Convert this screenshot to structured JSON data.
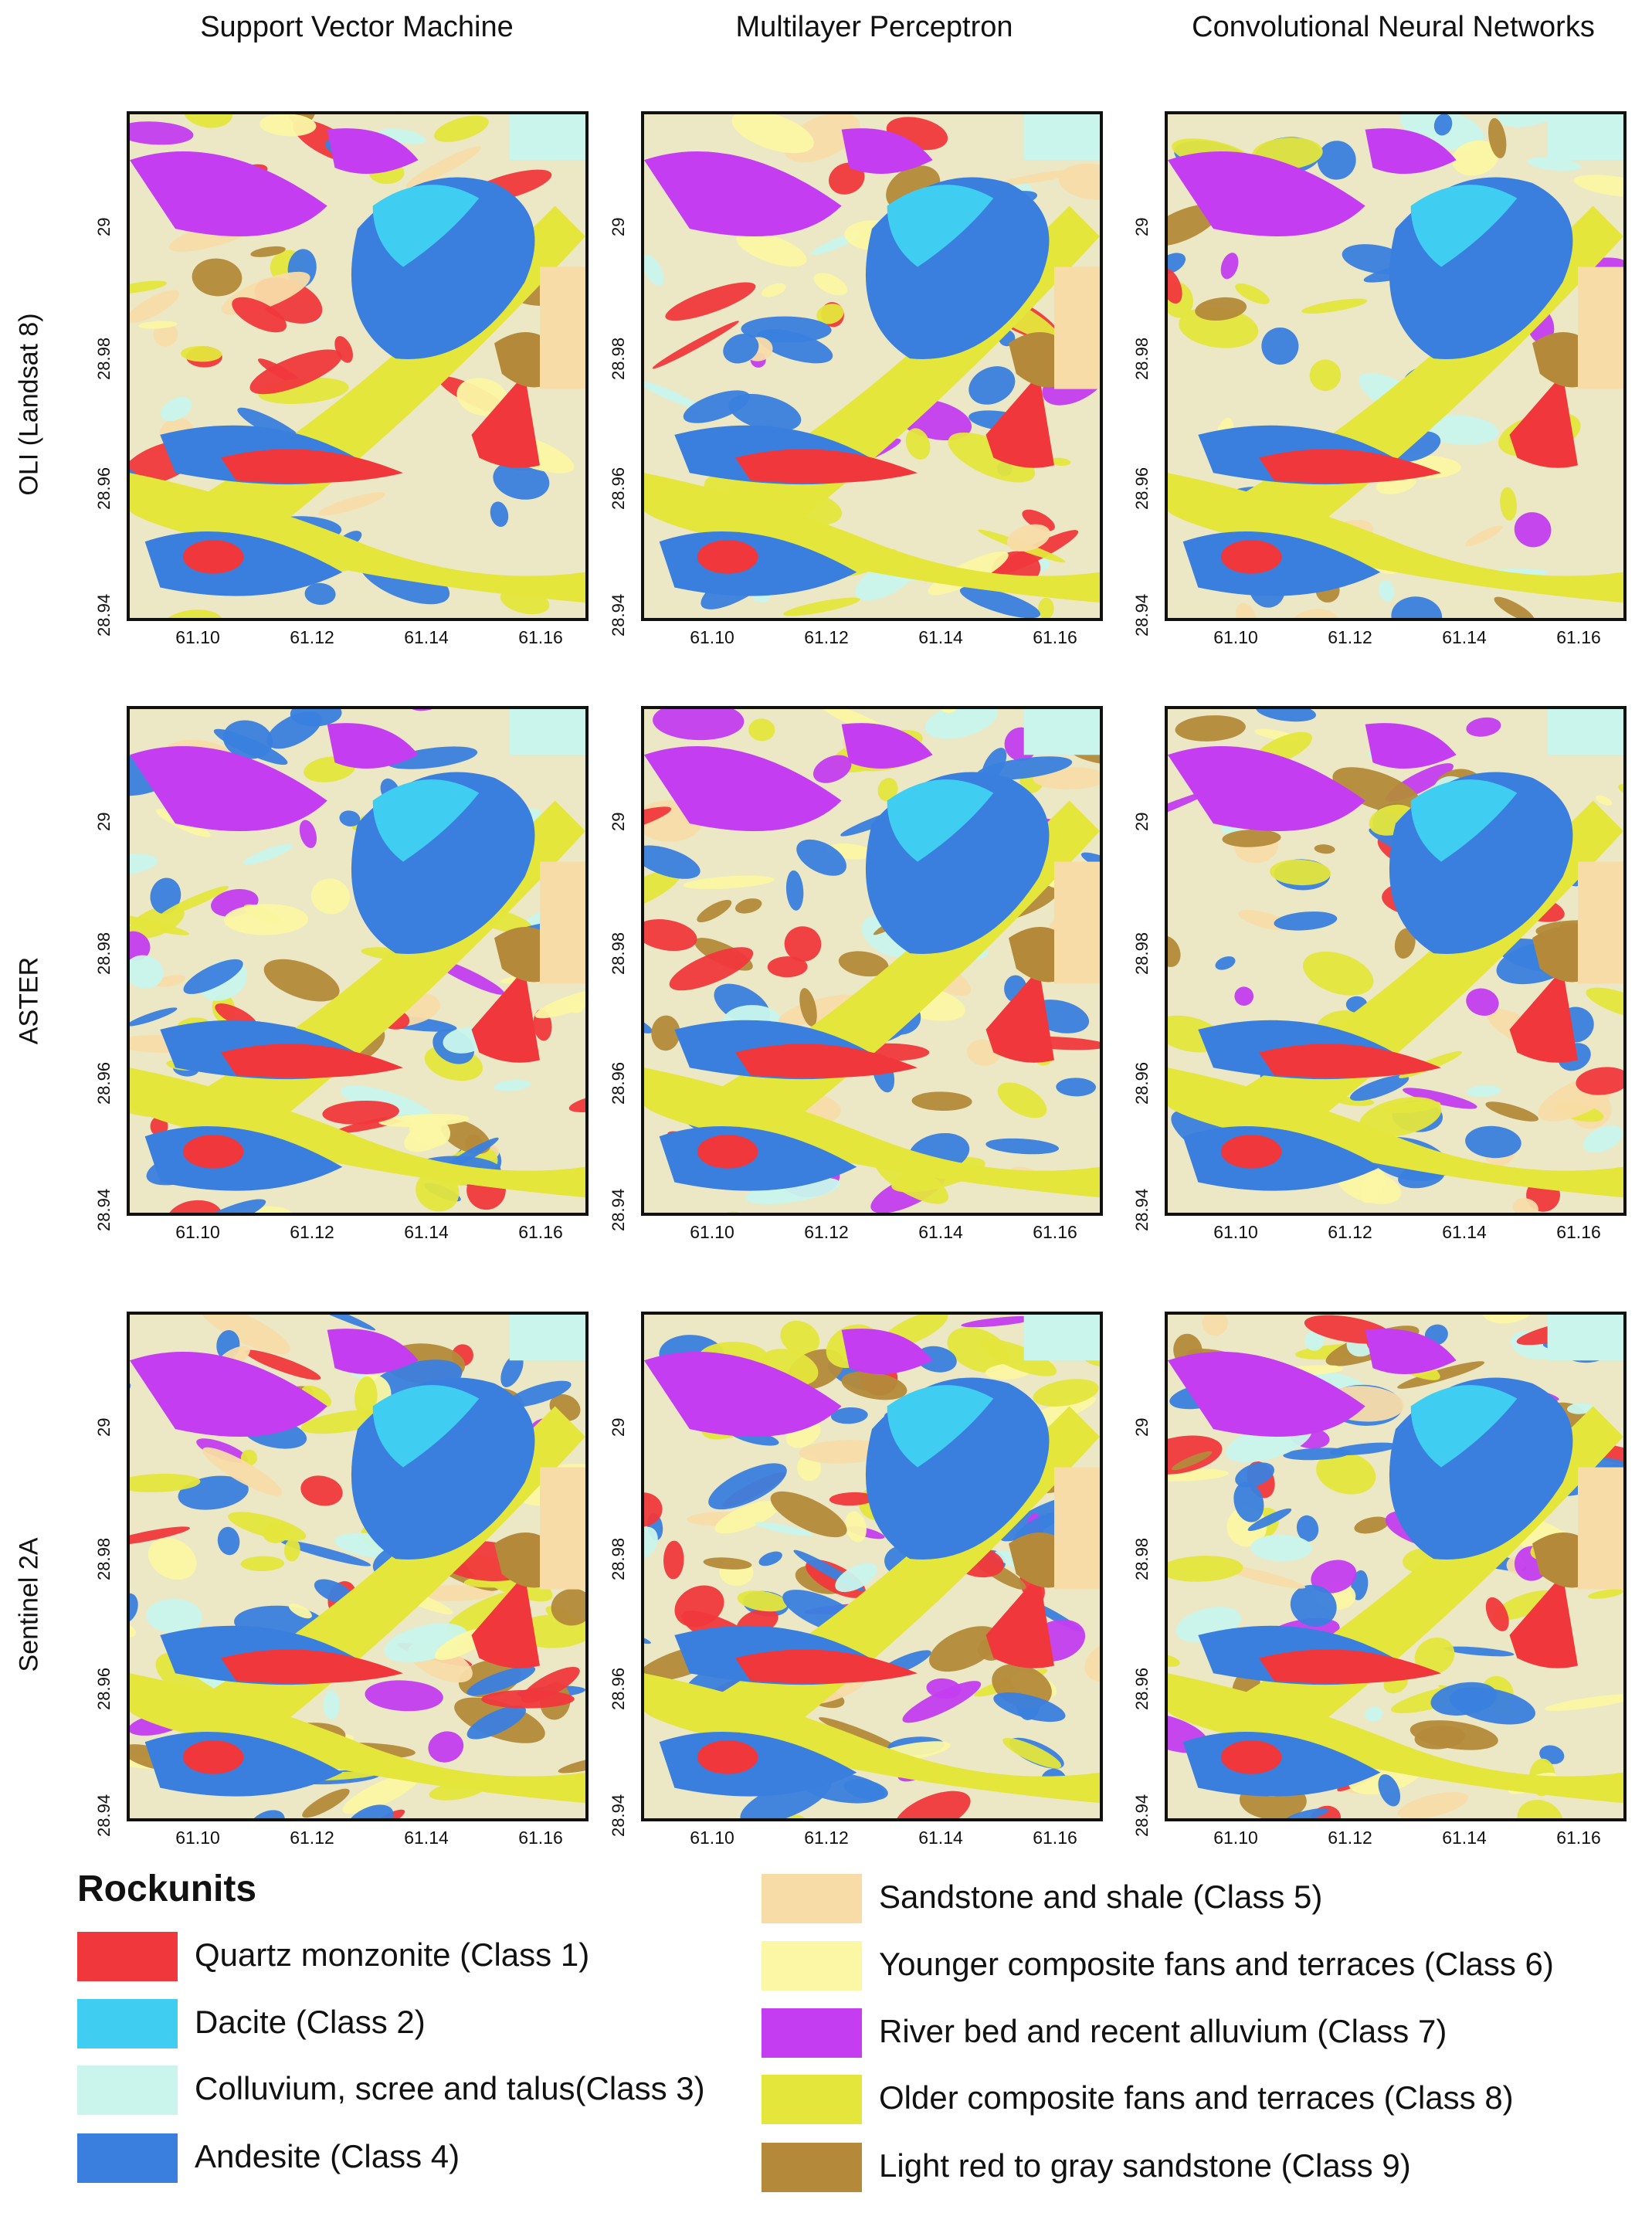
{
  "columns": [
    "Support Vector Machine",
    "Multilayer Perceptron",
    "Convolutional Neural Networks"
  ],
  "rows": [
    "OLI (Landsat 8)",
    "ASTER",
    "Sentinel 2A"
  ],
  "y_ticks": [
    "29",
    "28.98",
    "28.96",
    "28.94"
  ],
  "x_ticks": [
    "61.10",
    "61.12",
    "61.14",
    "61.16"
  ],
  "legend": {
    "title": "Rockunits",
    "items": [
      {
        "label": "Quartz monzonite (Class 1)",
        "color": "#f0383c"
      },
      {
        "label": "Dacite (Class 2)",
        "color": "#3fcdf2"
      },
      {
        "label": "Colluvium, scree and talus(Class 3)",
        "color": "#c9f5ec"
      },
      {
        "label": "Andesite (Class 4)",
        "color": "#3a7fde"
      },
      {
        "label": "Sandstone and shale (Class 5)",
        "color": "#f8dca8"
      },
      {
        "label": "Younger composite fans and terraces (Class 6)",
        "color": "#fbf7a4"
      },
      {
        "label": "River bed and recent alluvium (Class 7)",
        "color": "#c43df0"
      },
      {
        "label": "Older composite fans and terraces  (Class 8)",
        "color": "#e4e63c"
      },
      {
        "label": "Light  red  to  gray sandstone (Class 9)",
        "color": "#b48a3a"
      }
    ]
  }
}
